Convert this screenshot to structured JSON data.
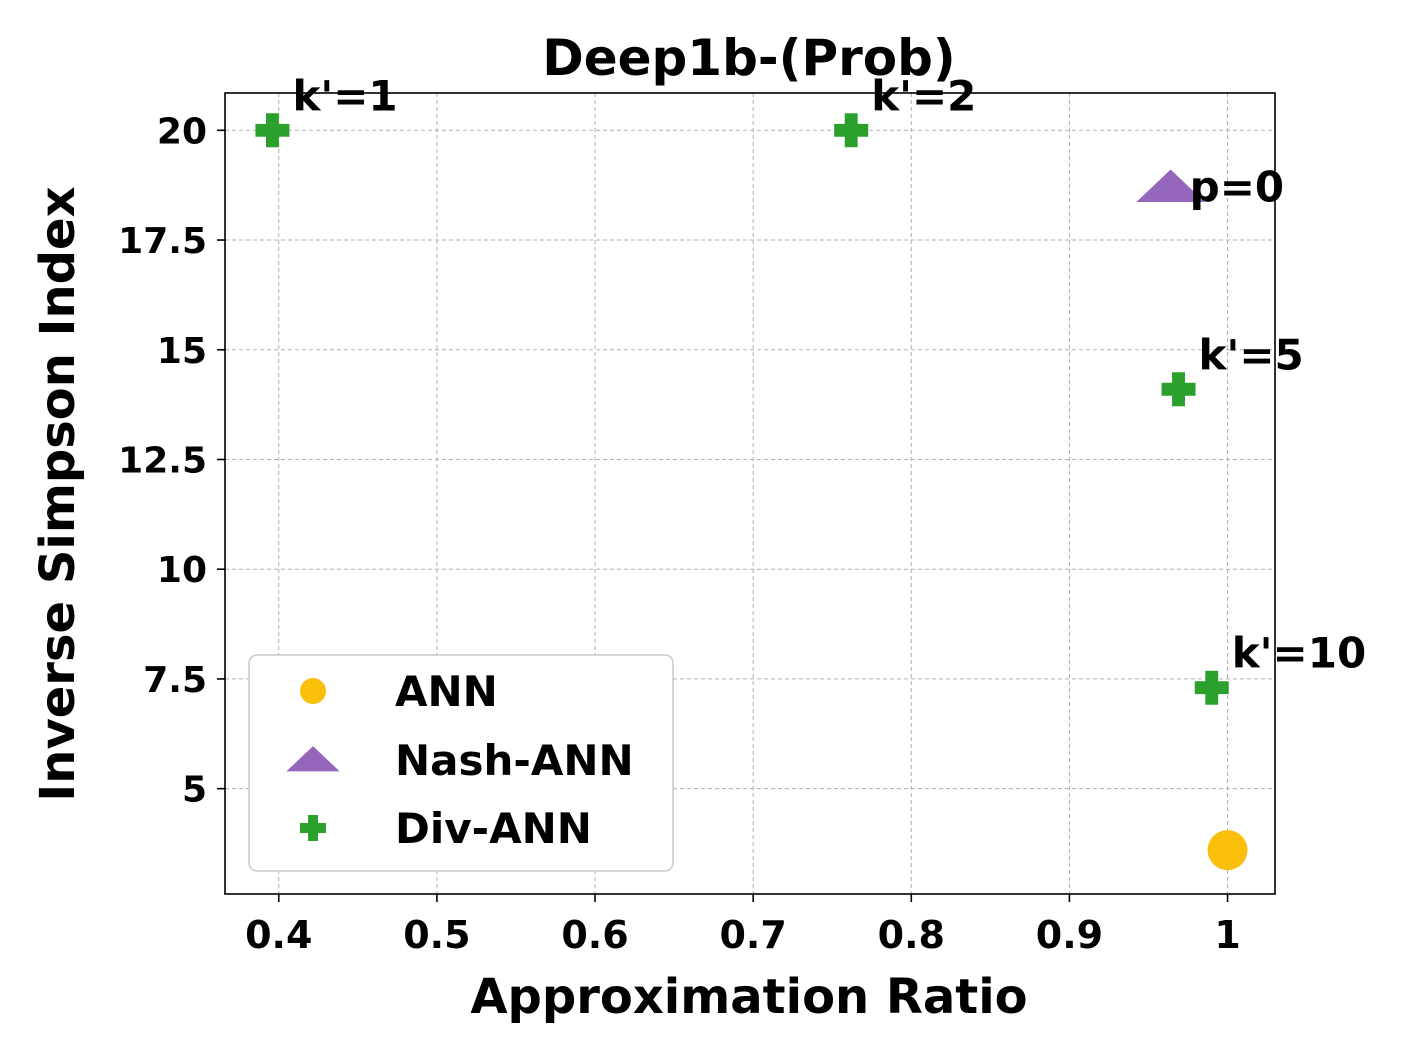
{
  "chart_data": {
    "type": "scatter",
    "title": "Deep1b-(Prob)",
    "xlabel": "Approximation Ratio",
    "ylabel": "Inverse Simpson Index",
    "xlim": [
      0.366,
      1.03
    ],
    "ylim": [
      2.6,
      20.85
    ],
    "xticks": [
      0.4,
      0.5,
      0.6,
      0.7,
      0.8,
      0.9,
      1.0
    ],
    "xtick_labels": [
      "0.4",
      "0.5",
      "0.6",
      "0.7",
      "0.8",
      "0.9",
      "1"
    ],
    "yticks": [
      5,
      7.5,
      10,
      12.5,
      15,
      17.5,
      20
    ],
    "ytick_labels": [
      "5",
      "7.5",
      "10",
      "12.5",
      "15",
      "17.5",
      "20"
    ],
    "grid": true,
    "legend_position": "lower-left",
    "series": [
      {
        "name": "ANN",
        "marker": "circle",
        "color": "#f9bf0a",
        "points": [
          {
            "x": 1.0,
            "y": 3.6,
            "label": ""
          }
        ]
      },
      {
        "name": "Nash-ANN",
        "marker": "triangle",
        "color": "#9467bd",
        "points": [
          {
            "x": 0.964,
            "y": 18.7,
            "label": "p=0"
          }
        ]
      },
      {
        "name": "Div-ANN",
        "marker": "plus",
        "color": "#2ca02c",
        "points": [
          {
            "x": 0.396,
            "y": 20.0,
            "label": "k'=1"
          },
          {
            "x": 0.762,
            "y": 20.0,
            "label": "k'=2"
          },
          {
            "x": 0.969,
            "y": 14.1,
            "label": "k'=5"
          },
          {
            "x": 0.99,
            "y": 7.3,
            "label": "k'=10"
          }
        ]
      }
    ]
  }
}
